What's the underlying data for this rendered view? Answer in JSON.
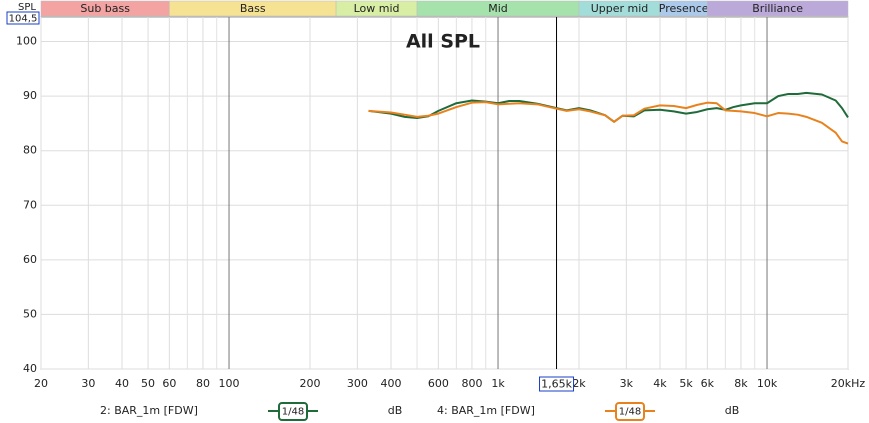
{
  "chart_data": {
    "type": "line",
    "title": "All SPL",
    "yaxis_label": "SPL",
    "log_x": true,
    "xlim": [
      20,
      20000
    ],
    "ylim": [
      40,
      104.5
    ],
    "y_readout": {
      "value": 104.5,
      "label": "104,5"
    },
    "cursor": {
      "value": 1650,
      "label": "1,65k"
    },
    "xticks": [
      20,
      30,
      40,
      50,
      60,
      80,
      100,
      200,
      300,
      400,
      600,
      800,
      {
        "value": 1000,
        "label": "1k"
      },
      {
        "value": 2000,
        "label": "2k"
      },
      {
        "value": 3000,
        "label": "3k"
      },
      {
        "value": 4000,
        "label": "4k"
      },
      {
        "value": 5000,
        "label": "5k"
      },
      {
        "value": 6000,
        "label": "6k"
      },
      {
        "value": 8000,
        "label": "8k"
      },
      {
        "value": 10000,
        "label": "10k"
      },
      {
        "value": 20000,
        "label": "20kHz"
      }
    ],
    "xminor": [
      70,
      90,
      500,
      700,
      900,
      7000,
      9000
    ],
    "yticks": [
      40,
      50,
      60,
      70,
      80,
      90,
      100
    ],
    "grid": true,
    "bands": [
      {
        "name": "Sub bass",
        "from": 20,
        "to": 60,
        "color": "#f4a3a3"
      },
      {
        "name": "Bass",
        "from": 60,
        "to": 250,
        "color": "#f6e293"
      },
      {
        "name": "Low mid",
        "from": 250,
        "to": 500,
        "color": "#d8eea4"
      },
      {
        "name": "Mid",
        "from": 500,
        "to": 2000,
        "color": "#a6e2ac"
      },
      {
        "name": "Upper mid",
        "from": 2000,
        "to": 4000,
        "color": "#a3ddd9"
      },
      {
        "name": "Presence",
        "from": 4000,
        "to": 6000,
        "color": "#abc9ea"
      },
      {
        "name": "Brilliance",
        "from": 6000,
        "to": 20000,
        "color": "#bba9da"
      }
    ],
    "x": [
      330,
      400,
      450,
      500,
      550,
      600,
      700,
      800,
      900,
      1000,
      1100,
      1200,
      1400,
      1650,
      1800,
      2000,
      2200,
      2500,
      2700,
      2900,
      3200,
      3500,
      4000,
      4500,
      5000,
      5500,
      6000,
      6500,
      7000,
      7500,
      8000,
      9000,
      10000,
      11000,
      12000,
      13000,
      14000,
      16000,
      18000,
      19000,
      20000
    ],
    "series": [
      {
        "name": "2: BAR_1m [FDW]",
        "color": "#1f6b3a",
        "smoothing": "1/48",
        "unit": "dB",
        "values": [
          87.3,
          86.8,
          86.2,
          86.0,
          86.3,
          87.3,
          88.7,
          89.2,
          89.0,
          88.7,
          89.1,
          89.1,
          88.6,
          87.8,
          87.4,
          87.8,
          87.4,
          86.5,
          85.3,
          86.4,
          86.3,
          87.4,
          87.5,
          87.2,
          86.8,
          87.1,
          87.6,
          87.8,
          87.5,
          88.0,
          88.3,
          88.7,
          88.7,
          90.0,
          90.4,
          90.4,
          90.6,
          90.3,
          89.2,
          87.8,
          86.1
        ]
      },
      {
        "name": "4: BAR_1m [FDW]",
        "color": "#e8821e",
        "smoothing": "1/48",
        "unit": "dB",
        "values": [
          87.3,
          87.0,
          86.6,
          86.2,
          86.4,
          86.8,
          88.0,
          88.8,
          88.9,
          88.5,
          88.6,
          88.7,
          88.5,
          87.7,
          87.3,
          87.6,
          87.2,
          86.5,
          85.3,
          86.4,
          86.5,
          87.7,
          88.3,
          88.2,
          87.8,
          88.4,
          88.8,
          88.7,
          87.4,
          87.3,
          87.2,
          86.9,
          86.3,
          86.9,
          86.8,
          86.6,
          86.2,
          85.1,
          83.3,
          81.7,
          81.3
        ]
      }
    ]
  }
}
